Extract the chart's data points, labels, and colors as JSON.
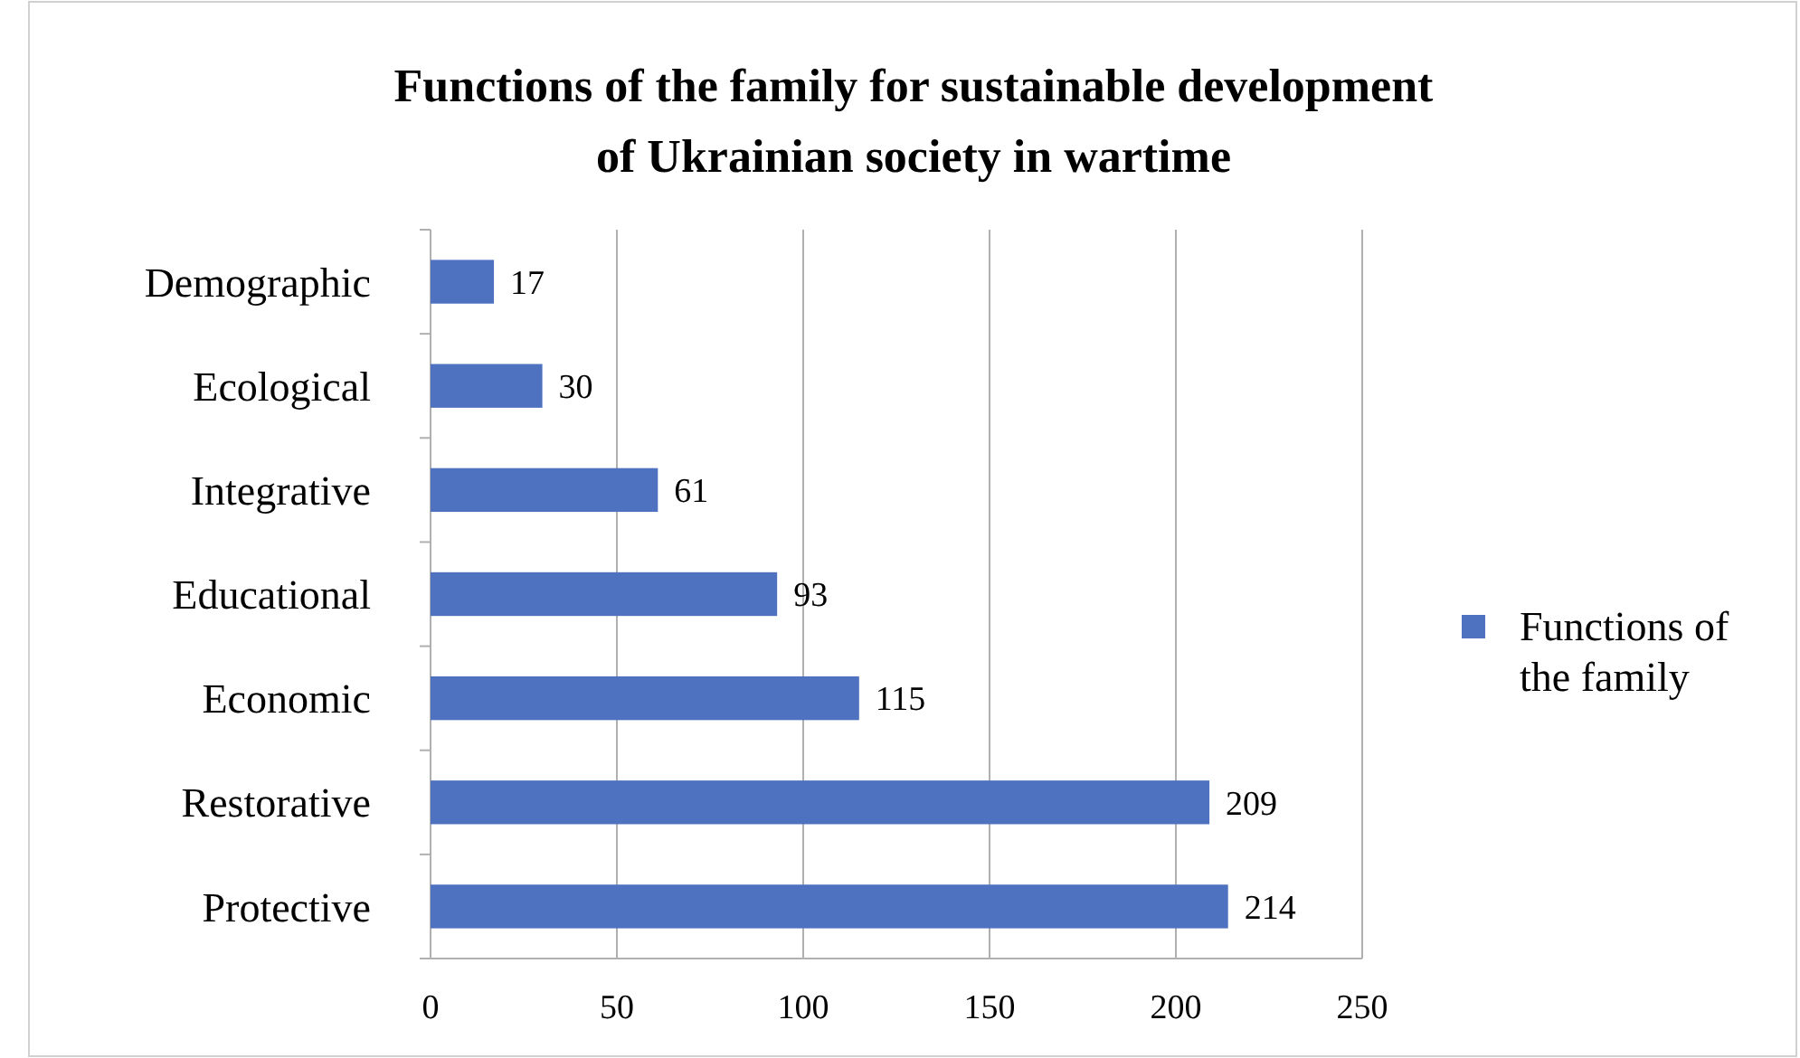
{
  "chart_data": {
    "type": "bar",
    "orientation": "horizontal",
    "title": "Functions of the family for sustainable development of Ukrainian society in wartime",
    "categories": [
      "Demographic",
      "Ecological",
      "Integrative",
      "Educational",
      "Economic",
      "Restorative",
      "Protective"
    ],
    "series": [
      {
        "name": "Functions of the family",
        "color": "#4f72c0",
        "values": [
          17,
          30,
          61,
          93,
          115,
          209,
          214
        ]
      }
    ],
    "xlim": [
      0,
      250
    ],
    "xticks": [
      0,
      50,
      100,
      150,
      200,
      250
    ],
    "grid": "x",
    "legend": "right",
    "data_labels": true
  }
}
